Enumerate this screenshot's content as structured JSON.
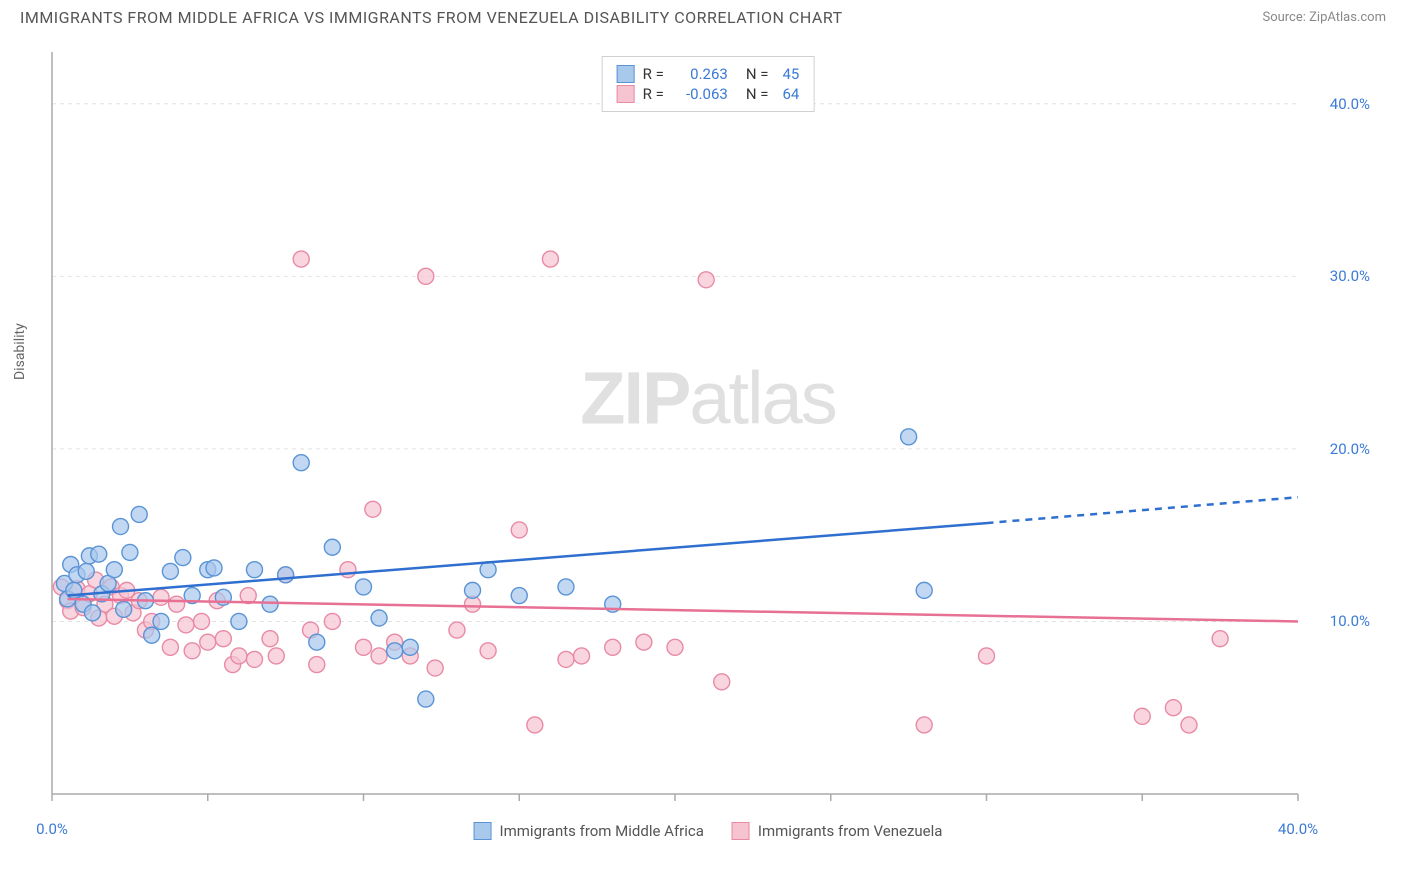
{
  "title": "IMMIGRANTS FROM MIDDLE AFRICA VS IMMIGRANTS FROM VENEZUELA DISABILITY CORRELATION CHART",
  "source": "Source: ZipAtlas.com",
  "ylabel": "Disability",
  "watermark_bold": "ZIP",
  "watermark_light": "atlas",
  "chart": {
    "type": "scatter",
    "xlim": [
      0,
      40
    ],
    "ylim": [
      0,
      43
    ],
    "background_color": "#ffffff",
    "grid_color": "#e2e2e2",
    "axis_color": "#aaaaaa",
    "xticks": [
      0,
      5,
      10,
      15,
      20,
      25,
      30,
      35,
      40
    ],
    "xtick_labels": {
      "0": "0.0%",
      "40": "40.0%"
    },
    "yticks": [
      10,
      20,
      30,
      40
    ],
    "ytick_labels": {
      "10": "10.0%",
      "20": "20.0%",
      "30": "30.0%",
      "40": "40.0%"
    },
    "label_color": "#3b7bd6",
    "series": [
      {
        "name": "Immigrants from Middle Africa",
        "marker_fill": "#a8c8ec",
        "marker_stroke": "#5a94d6",
        "marker_opacity": 0.7,
        "marker_radius": 8,
        "line_color": "#2f6fd0",
        "line_width": 2.5,
        "R": "0.263",
        "N": "45",
        "trend": {
          "x1": 0.5,
          "y1": 11.5,
          "x2": 30,
          "y2": 15.7,
          "dash_from_x": 30,
          "dash_to_x": 40,
          "dash_to_y": 17.2
        },
        "points": [
          [
            0.4,
            12.2
          ],
          [
            0.5,
            11.3
          ],
          [
            0.6,
            13.3
          ],
          [
            0.7,
            11.8
          ],
          [
            0.8,
            12.7
          ],
          [
            1.0,
            11.0
          ],
          [
            1.1,
            12.9
          ],
          [
            1.2,
            13.8
          ],
          [
            1.3,
            10.5
          ],
          [
            1.5,
            13.9
          ],
          [
            1.6,
            11.6
          ],
          [
            1.8,
            12.2
          ],
          [
            2.0,
            13.0
          ],
          [
            2.2,
            15.5
          ],
          [
            2.3,
            10.7
          ],
          [
            2.5,
            14.0
          ],
          [
            2.8,
            16.2
          ],
          [
            3.0,
            11.2
          ],
          [
            3.2,
            9.2
          ],
          [
            3.5,
            10.0
          ],
          [
            3.8,
            12.9
          ],
          [
            4.2,
            13.7
          ],
          [
            4.5,
            11.5
          ],
          [
            5.0,
            13.0
          ],
          [
            5.2,
            13.1
          ],
          [
            5.5,
            11.4
          ],
          [
            6.0,
            10.0
          ],
          [
            6.5,
            13.0
          ],
          [
            7.0,
            11.0
          ],
          [
            7.5,
            12.7
          ],
          [
            8.0,
            19.2
          ],
          [
            8.5,
            8.8
          ],
          [
            9.0,
            14.3
          ],
          [
            10.0,
            12.0
          ],
          [
            10.5,
            10.2
          ],
          [
            11.0,
            8.3
          ],
          [
            11.5,
            8.5
          ],
          [
            12.0,
            5.5
          ],
          [
            13.5,
            11.8
          ],
          [
            14.0,
            13.0
          ],
          [
            15.0,
            11.5
          ],
          [
            16.5,
            12.0
          ],
          [
            18.0,
            11.0
          ],
          [
            27.5,
            20.7
          ],
          [
            28.0,
            11.8
          ]
        ]
      },
      {
        "name": "Immigrants from Venezuela",
        "marker_fill": "#f6c3d1",
        "marker_stroke": "#e88aa5",
        "marker_opacity": 0.7,
        "marker_radius": 8,
        "line_color": "#e77094",
        "line_width": 2.5,
        "R": "-0.063",
        "N": "64",
        "trend": {
          "x1": 0.5,
          "y1": 11.3,
          "x2": 40,
          "y2": 10.0
        },
        "points": [
          [
            0.3,
            12.0
          ],
          [
            0.5,
            11.2
          ],
          [
            0.6,
            10.6
          ],
          [
            0.8,
            11.9
          ],
          [
            1.0,
            10.8
          ],
          [
            1.2,
            11.6
          ],
          [
            1.4,
            12.4
          ],
          [
            1.5,
            10.2
          ],
          [
            1.7,
            11.0
          ],
          [
            1.9,
            12.0
          ],
          [
            2.0,
            10.3
          ],
          [
            2.2,
            11.5
          ],
          [
            2.4,
            11.8
          ],
          [
            2.6,
            10.5
          ],
          [
            2.8,
            11.2
          ],
          [
            3.0,
            9.5
          ],
          [
            3.2,
            10.0
          ],
          [
            3.5,
            11.4
          ],
          [
            3.8,
            8.5
          ],
          [
            4.0,
            11.0
          ],
          [
            4.3,
            9.8
          ],
          [
            4.5,
            8.3
          ],
          [
            4.8,
            10.0
          ],
          [
            5.0,
            8.8
          ],
          [
            5.3,
            11.2
          ],
          [
            5.5,
            9.0
          ],
          [
            5.8,
            7.5
          ],
          [
            6.0,
            8.0
          ],
          [
            6.3,
            11.5
          ],
          [
            6.5,
            7.8
          ],
          [
            7.0,
            9.0
          ],
          [
            7.2,
            8.0
          ],
          [
            7.5,
            12.7
          ],
          [
            8.0,
            31.0
          ],
          [
            8.3,
            9.5
          ],
          [
            8.5,
            7.5
          ],
          [
            9.0,
            10.0
          ],
          [
            9.5,
            13.0
          ],
          [
            10.0,
            8.5
          ],
          [
            10.3,
            16.5
          ],
          [
            10.5,
            8.0
          ],
          [
            11.0,
            8.8
          ],
          [
            11.5,
            8.0
          ],
          [
            12.0,
            30.0
          ],
          [
            12.3,
            7.3
          ],
          [
            13.0,
            9.5
          ],
          [
            13.5,
            11.0
          ],
          [
            14.0,
            8.3
          ],
          [
            15.0,
            15.3
          ],
          [
            15.5,
            4.0
          ],
          [
            16.0,
            31.0
          ],
          [
            16.5,
            7.8
          ],
          [
            17.0,
            8.0
          ],
          [
            18.0,
            8.5
          ],
          [
            19.0,
            8.8
          ],
          [
            20.0,
            8.5
          ],
          [
            21.0,
            29.8
          ],
          [
            21.5,
            6.5
          ],
          [
            28.0,
            4.0
          ],
          [
            30.0,
            8.0
          ],
          [
            35.0,
            4.5
          ],
          [
            36.0,
            5.0
          ],
          [
            36.5,
            4.0
          ],
          [
            37.5,
            9.0
          ]
        ]
      }
    ]
  },
  "bottom_legend": [
    {
      "label": "Immigrants from Middle Africa",
      "fill": "#a8c8ec",
      "stroke": "#5a94d6"
    },
    {
      "label": "Immigrants from Venezuela",
      "fill": "#f6c3d1",
      "stroke": "#e88aa5"
    }
  ]
}
